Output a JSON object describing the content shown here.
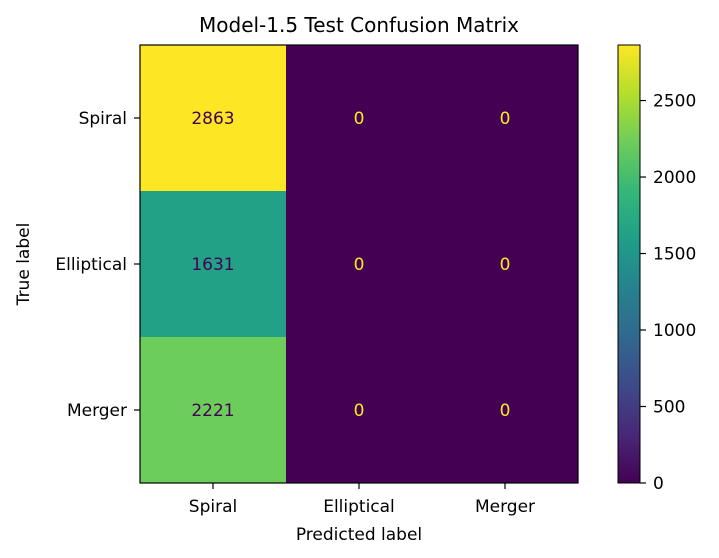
{
  "chart_data": {
    "type": "heatmap",
    "title": "Model-1.5 Test Confusion Matrix",
    "xlabel": "Predicted label",
    "ylabel": "True label",
    "x_categories": [
      "Spiral",
      "Elliptical",
      "Merger"
    ],
    "y_categories": [
      "Spiral",
      "Elliptical",
      "Merger"
    ],
    "values": [
      [
        2863,
        0,
        0
      ],
      [
        1631,
        0,
        0
      ],
      [
        2221,
        0,
        0
      ]
    ],
    "colormap": "viridis",
    "value_range": [
      0,
      2863
    ],
    "colorbar_ticks": [
      0,
      500,
      1000,
      1500,
      2000,
      2500
    ],
    "colors": {
      "text_on_dark": "#fde725",
      "text_on_light": "#440154",
      "axis": "#000000"
    }
  }
}
